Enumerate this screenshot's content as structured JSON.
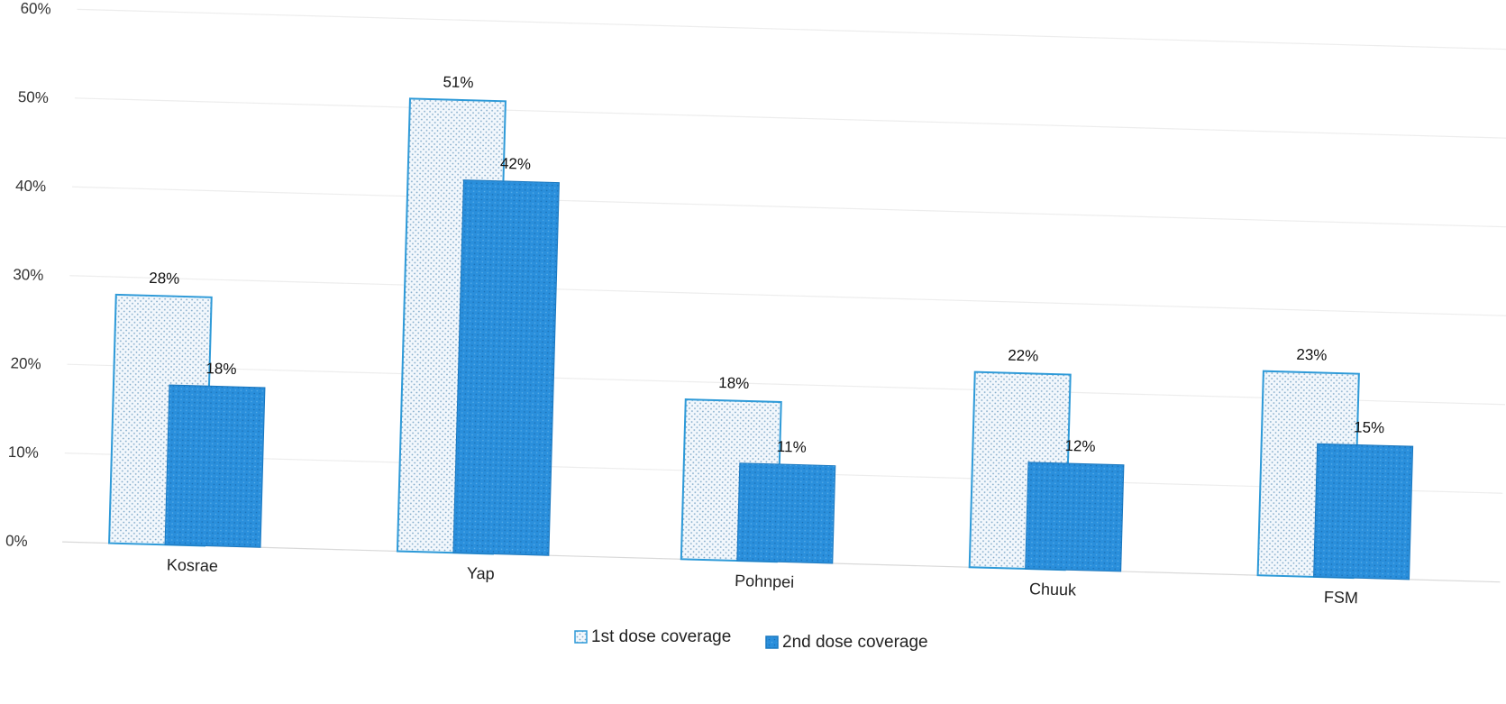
{
  "chart_data": {
    "type": "bar",
    "categories": [
      "Kosrae",
      "Yap",
      "Pohnpei",
      "Chuuk",
      "FSM"
    ],
    "series": [
      {
        "name": "1st dose coverage",
        "values": [
          28,
          51,
          18,
          22,
          23
        ],
        "labels": [
          "28%",
          "51%",
          "18%",
          "22%",
          "23%"
        ],
        "color": "#e8f2fb",
        "border": "#2e9ad8"
      },
      {
        "name": "2nd dose coverage",
        "values": [
          18,
          42,
          11,
          12,
          15
        ],
        "labels": [
          "18%",
          "42%",
          "11%",
          "12%",
          "15%"
        ],
        "color": "#2a8fdc",
        "border": "#1a78c0"
      }
    ],
    "ylim": [
      0,
      60
    ],
    "yticks": [
      "0%",
      "10%",
      "20%",
      "30%",
      "40%",
      "50%",
      "60%"
    ],
    "grid": true,
    "legend": "bottom"
  }
}
